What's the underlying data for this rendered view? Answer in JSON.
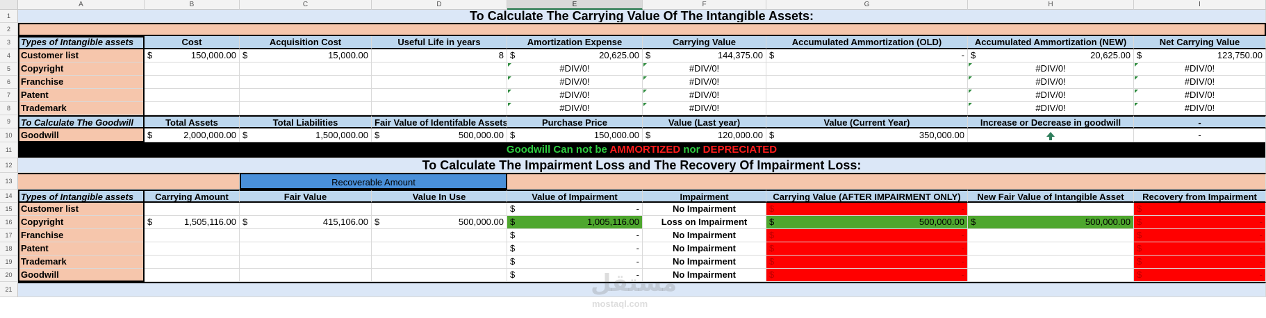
{
  "columns": [
    "A",
    "B",
    "C",
    "D",
    "E",
    "F",
    "G",
    "H",
    "I"
  ],
  "selected_column": "E",
  "rows": [
    "1",
    "2",
    "3",
    "4",
    "5",
    "6",
    "7",
    "8",
    "9",
    "10",
    "11",
    "12",
    "13",
    "14",
    "15",
    "16",
    "17",
    "18",
    "19",
    "20",
    "21"
  ],
  "colors": {
    "light_blue": "#dbe7f7",
    "salmon": "#f6c6ac",
    "header_blue": "#bdd7ee",
    "black": "#000000",
    "green_text": "#2ecc40",
    "red_text": "#ff1a1a",
    "green_fill": "#4ea72e",
    "red_fill": "#ff0000",
    "mid_blue": "#4a90d9"
  },
  "title1": "To Calculate The Carrying Value Of The Intangible Assets:",
  "table1": {
    "headers": [
      "Types of Intangible assets",
      "Cost",
      "Acquisition Cost",
      "Useful Life in years",
      "Amortization Expense",
      "Carrying Value",
      "Accumulated Ammortization (OLD)",
      "Accumulated Ammortization (NEW)",
      "Net Carrying Value"
    ],
    "rows": [
      {
        "name": "Customer list",
        "cost": "150,000.00",
        "acq": "15,000.00",
        "life": "8",
        "amort": "20,625.00",
        "carry": "144,375.00",
        "old": "-",
        "new": "20,625.00",
        "net": "123,750.00"
      },
      {
        "name": "Copyright",
        "amort": "#DIV/0!",
        "carry": "#DIV/0!",
        "new": "#DIV/0!",
        "net": "#DIV/0!"
      },
      {
        "name": "Franchise",
        "amort": "#DIV/0!",
        "carry": "#DIV/0!",
        "new": "#DIV/0!",
        "net": "#DIV/0!"
      },
      {
        "name": "Patent",
        "amort": "#DIV/0!",
        "carry": "#DIV/0!",
        "new": "#DIV/0!",
        "net": "#DIV/0!"
      },
      {
        "name": "Trademark",
        "amort": "#DIV/0!",
        "carry": "#DIV/0!",
        "new": "#DIV/0!",
        "net": "#DIV/0!"
      }
    ],
    "currency": "$"
  },
  "goodwill": {
    "headers": [
      "To Calculate The Goodwill",
      "Total Assets",
      "Total Liabilities",
      "Fair Value of Identifable Assets",
      "Purchase Price",
      "Value (Last year)",
      "Value (Current Year)",
      "Increase or Decrease in goodwill",
      "-"
    ],
    "name": "Goodwill",
    "total_assets": "2,000,000.00",
    "total_liabilities": "1,500,000.00",
    "fair_value": "500,000.00",
    "purchase_price": "150,000.00",
    "last_year": "120,000.00",
    "current_year": "350,000.00",
    "change_icon": "up-arrow",
    "net": "-"
  },
  "note": {
    "part1": "Goodwill Can not be ",
    "part2": "AMMORTIZED",
    "part3": " nor ",
    "part4": "DEPRECIATED"
  },
  "title2": "To Calculate The Impairment Loss and The Recovery Of Impairment Loss:",
  "recoverable_label": "Recoverable Amount",
  "table2": {
    "headers": [
      "Types of Intangible assets",
      "Carrying Amount",
      "Fair Value",
      "Value In Use",
      "Value of Impairment",
      "Impairment",
      "Carrying Value (AFTER IMPAIRMENT ONLY)",
      "New Fair Value of Intangible Asset",
      "Recovery from Impairment"
    ],
    "rows": [
      {
        "name": "Customer list",
        "value_imp": "-",
        "impairment": "No Impairment",
        "after": "-",
        "recovery": "-"
      },
      {
        "name": "Copyright",
        "carrying": "1,505,116.00",
        "fair": "415,106.00",
        "viu": "500,000.00",
        "value_imp": "1,005,116.00",
        "impairment": "Loss on Impairment",
        "after": "500,000.00",
        "newfair": "500,000.00",
        "recovery": "-"
      },
      {
        "name": "Franchise",
        "value_imp": "-",
        "impairment": "No Impairment",
        "after": "-",
        "recovery": "-"
      },
      {
        "name": "Patent",
        "value_imp": "-",
        "impairment": "No Impairment",
        "after": "-",
        "recovery": "-"
      },
      {
        "name": "Trademark",
        "value_imp": "-",
        "impairment": "No Impairment",
        "after": "-",
        "recovery": "-"
      },
      {
        "name": "Goodwill",
        "value_imp": "-",
        "impairment": "No Impairment",
        "after": "-",
        "recovery": "-"
      }
    ]
  },
  "watermark": {
    "logo": "مستقل",
    "site": "mostaql.com"
  }
}
